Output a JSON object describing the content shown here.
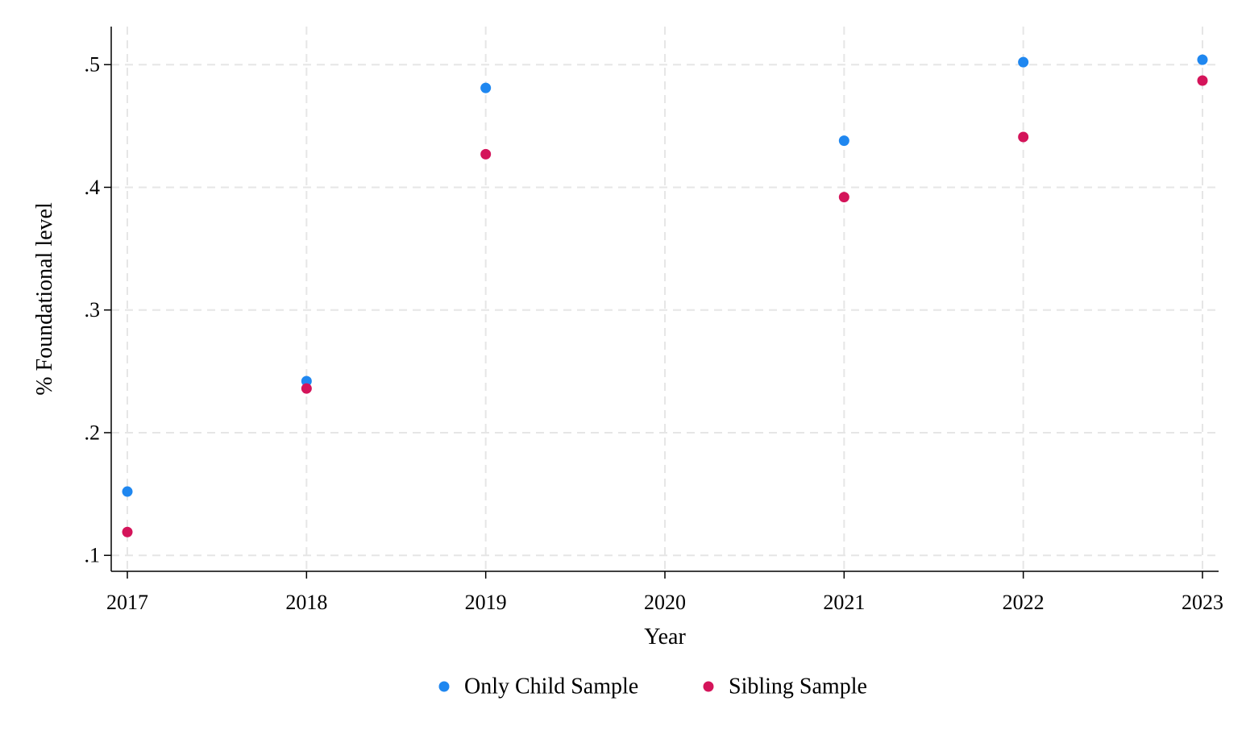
{
  "chart_data": {
    "type": "scatter",
    "title": "",
    "xlabel": "Year",
    "ylabel": "% Foundational level",
    "x_ticks": [
      2017,
      2018,
      2019,
      2020,
      2021,
      2022,
      2023
    ],
    "x_tick_labels": [
      "2017",
      "2018",
      "2019",
      "2020",
      "2021",
      "2022",
      "2023"
    ],
    "y_ticks": [
      0.1,
      0.2,
      0.3,
      0.4,
      0.5
    ],
    "y_tick_labels": [
      ".1",
      ".2",
      ".3",
      ".4",
      ".5"
    ],
    "xlim": [
      2016.91,
      2023.09
    ],
    "ylim": [
      0.087,
      0.531
    ],
    "grid": true,
    "legend_position": "bottom",
    "series": [
      {
        "name": "Only Child Sample",
        "color": "#1f87f0",
        "x": [
          2017,
          2018,
          2019,
          2021,
          2022,
          2023
        ],
        "y": [
          0.152,
          0.242,
          0.481,
          0.438,
          0.502,
          0.504
        ]
      },
      {
        "name": "Sibling Sample",
        "color": "#d4145a",
        "x": [
          2017,
          2018,
          2019,
          2021,
          2022,
          2023
        ],
        "y": [
          0.119,
          0.236,
          0.427,
          0.392,
          0.441,
          0.487
        ]
      }
    ]
  }
}
